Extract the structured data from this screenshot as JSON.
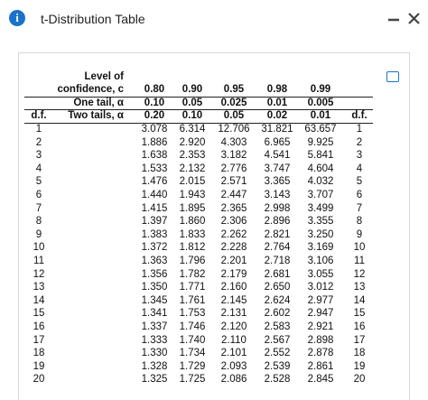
{
  "header": {
    "title": "t-Distribution Table"
  },
  "table": {
    "level_label": [
      "Level of",
      "confidence, c"
    ],
    "one_tail_label": "One tail, α",
    "two_tails_label": "Two tails, α",
    "df_label": "d.f.",
    "confidence": [
      "0.80",
      "0.90",
      "0.95",
      "0.98",
      "0.99"
    ],
    "one_tail": [
      "0.10",
      "0.05",
      "0.025",
      "0.01",
      "0.005"
    ],
    "two_tails": [
      "0.20",
      "0.10",
      "0.05",
      "0.02",
      "0.01"
    ],
    "rows": [
      [
        "1",
        "3.078",
        "6.314",
        "12.706",
        "31.821",
        "63.657"
      ],
      [
        "2",
        "1.886",
        "2.920",
        "4.303",
        "6.965",
        "9.925"
      ],
      [
        "3",
        "1.638",
        "2.353",
        "3.182",
        "4.541",
        "5.841"
      ],
      [
        "4",
        "1.533",
        "2.132",
        "2.776",
        "3.747",
        "4.604"
      ],
      [
        "5",
        "1.476",
        "2.015",
        "2.571",
        "3.365",
        "4.032"
      ],
      [
        "6",
        "1.440",
        "1.943",
        "2.447",
        "3.143",
        "3.707"
      ],
      [
        "7",
        "1.415",
        "1.895",
        "2.365",
        "2.998",
        "3.499"
      ],
      [
        "8",
        "1.397",
        "1.860",
        "2.306",
        "2.896",
        "3.355"
      ],
      [
        "9",
        "1.383",
        "1.833",
        "2.262",
        "2.821",
        "3.250"
      ],
      [
        "10",
        "1.372",
        "1.812",
        "2.228",
        "2.764",
        "3.169"
      ],
      [
        "11",
        "1.363",
        "1.796",
        "2.201",
        "2.718",
        "3.106"
      ],
      [
        "12",
        "1.356",
        "1.782",
        "2.179",
        "2.681",
        "3.055"
      ],
      [
        "13",
        "1.350",
        "1.771",
        "2.160",
        "2.650",
        "3.012"
      ],
      [
        "14",
        "1.345",
        "1.761",
        "2.145",
        "2.624",
        "2.977"
      ],
      [
        "15",
        "1.341",
        "1.753",
        "2.131",
        "2.602",
        "2.947"
      ],
      [
        "16",
        "1.337",
        "1.746",
        "2.120",
        "2.583",
        "2.921"
      ],
      [
        "17",
        "1.333",
        "1.740",
        "2.110",
        "2.567",
        "2.898"
      ],
      [
        "18",
        "1.330",
        "1.734",
        "2.101",
        "2.552",
        "2.878"
      ],
      [
        "19",
        "1.328",
        "1.729",
        "2.093",
        "2.539",
        "2.861"
      ],
      [
        "20",
        "1.325",
        "1.725",
        "2.086",
        "2.528",
        "2.845"
      ]
    ]
  }
}
